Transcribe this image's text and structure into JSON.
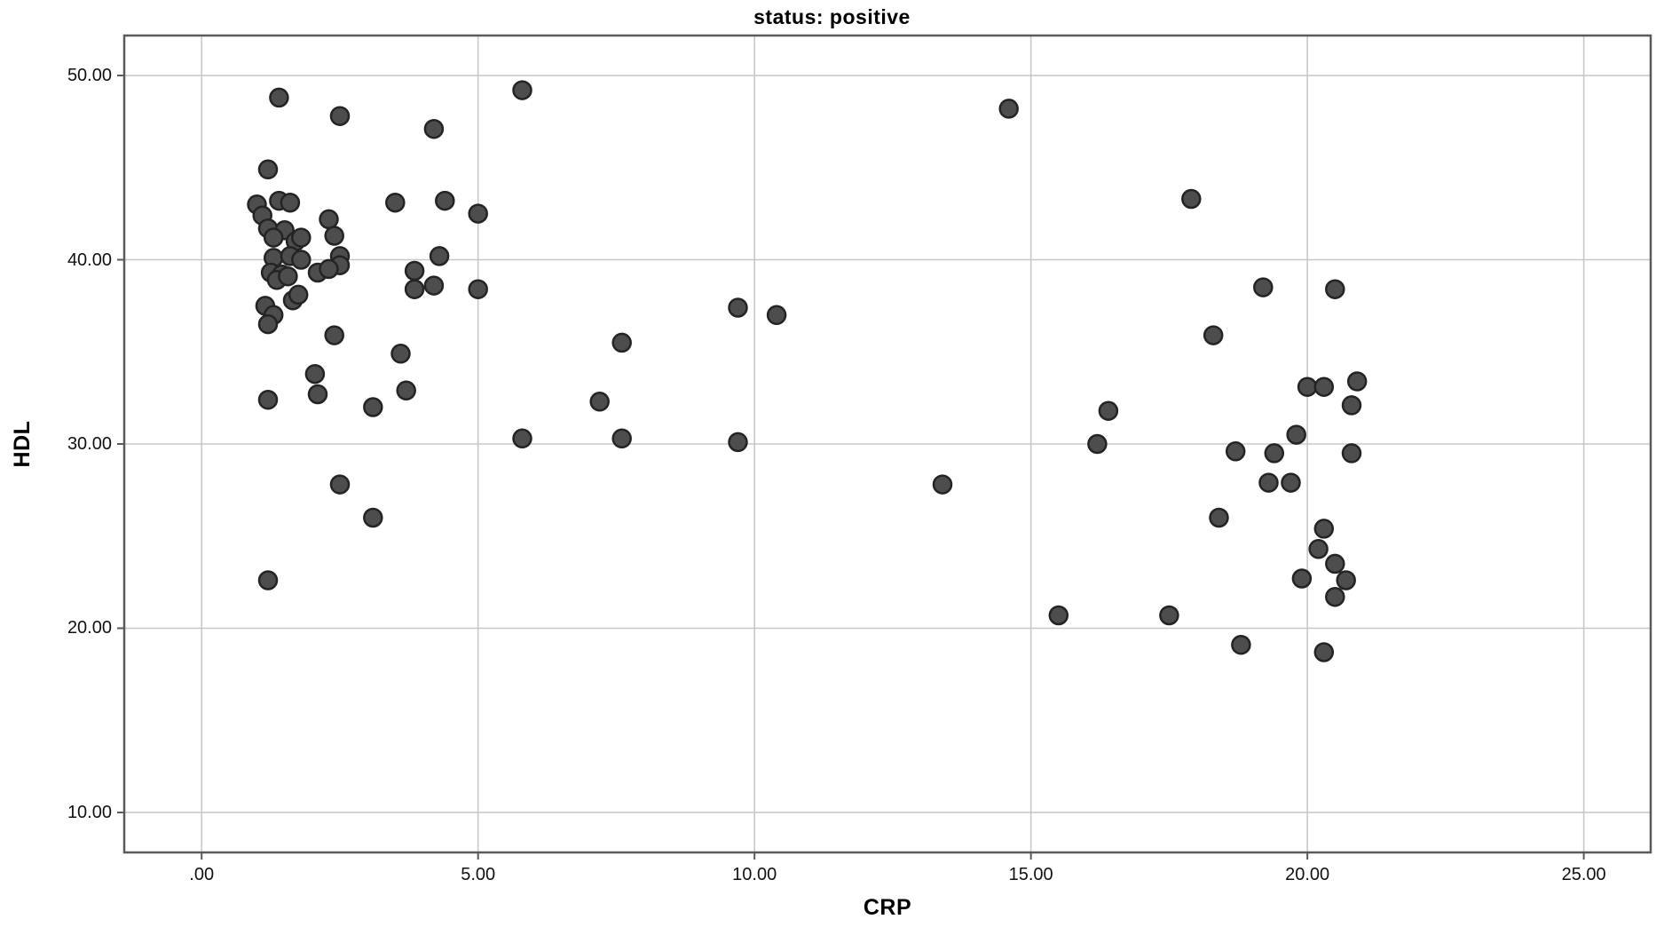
{
  "figure": {
    "title": "status: positive",
    "background": "#ffffff"
  },
  "chart_data": {
    "type": "scatter",
    "title": "status: positive",
    "xlabel": "CRP",
    "ylabel": "HDL",
    "xlim": [
      -1.4,
      26.21
    ],
    "ylim": [
      7.83,
      52.17
    ],
    "grid": true,
    "legend": "none",
    "x_ticks": [
      {
        "value": 0,
        "label": ".00"
      },
      {
        "value": 5,
        "label": "5.00"
      },
      {
        "value": 10,
        "label": "10.00"
      },
      {
        "value": 15,
        "label": "15.00"
      },
      {
        "value": 20,
        "label": "20.00"
      },
      {
        "value": 25,
        "label": "25.00"
      }
    ],
    "y_ticks": [
      {
        "value": 10,
        "label": "10.00"
      },
      {
        "value": 20,
        "label": "20.00"
      },
      {
        "value": 30,
        "label": "30.00"
      },
      {
        "value": 40,
        "label": "40.00"
      },
      {
        "value": 50,
        "label": "50.00"
      }
    ],
    "colors": {
      "marker_fill": "#4d4d4d",
      "marker_stroke": "#242424",
      "gridline": "#c8c8c8",
      "frame": "#5a5a5a",
      "background": "#ffffff",
      "text": "#000000"
    },
    "marker_radius": 10,
    "points": [
      [
        1.4,
        48.8
      ],
      [
        2.5,
        47.8
      ],
      [
        4.2,
        47.1
      ],
      [
        5.8,
        49.2
      ],
      [
        1.2,
        44.9
      ],
      [
        1.0,
        43.0
      ],
      [
        1.4,
        43.2
      ],
      [
        1.6,
        43.1
      ],
      [
        3.5,
        43.1
      ],
      [
        4.4,
        43.2
      ],
      [
        1.1,
        42.4
      ],
      [
        2.3,
        42.2
      ],
      [
        5.0,
        42.5
      ],
      [
        1.2,
        41.7
      ],
      [
        1.5,
        41.6
      ],
      [
        1.3,
        41.2
      ],
      [
        1.7,
        41.0
      ],
      [
        1.8,
        41.2
      ],
      [
        2.4,
        41.3
      ],
      [
        1.3,
        40.1
      ],
      [
        1.6,
        40.2
      ],
      [
        1.8,
        40.0
      ],
      [
        2.5,
        40.2
      ],
      [
        4.3,
        40.2
      ],
      [
        2.5,
        39.7
      ],
      [
        2.1,
        39.3
      ],
      [
        2.3,
        39.5
      ],
      [
        1.25,
        39.3
      ],
      [
        1.45,
        39.2
      ],
      [
        1.36,
        38.9
      ],
      [
        1.56,
        39.1
      ],
      [
        3.85,
        39.4
      ],
      [
        3.85,
        38.4
      ],
      [
        4.2,
        38.6
      ],
      [
        5.0,
        38.4
      ],
      [
        1.15,
        37.5
      ],
      [
        1.65,
        37.8
      ],
      [
        1.75,
        38.1
      ],
      [
        1.3,
        37.0
      ],
      [
        1.2,
        36.5
      ],
      [
        2.4,
        35.9
      ],
      [
        3.6,
        34.9
      ],
      [
        2.05,
        33.8
      ],
      [
        2.1,
        32.7
      ],
      [
        1.2,
        32.4
      ],
      [
        3.1,
        32.0
      ],
      [
        3.7,
        32.9
      ],
      [
        2.5,
        27.8
      ],
      [
        3.1,
        26.0
      ],
      [
        1.2,
        22.6
      ],
      [
        5.8,
        30.3
      ],
      [
        7.2,
        32.3
      ],
      [
        7.6,
        35.5
      ],
      [
        7.6,
        30.3
      ],
      [
        9.7,
        37.4
      ],
      [
        10.4,
        37.0
      ],
      [
        9.7,
        30.1
      ],
      [
        13.4,
        27.8
      ],
      [
        14.6,
        48.2
      ],
      [
        17.9,
        43.3
      ],
      [
        19.2,
        38.5
      ],
      [
        20.5,
        38.4
      ],
      [
        18.3,
        35.9
      ],
      [
        16.4,
        31.8
      ],
      [
        16.2,
        30.0
      ],
      [
        20.0,
        33.1
      ],
      [
        20.3,
        33.1
      ],
      [
        20.9,
        33.4
      ],
      [
        20.8,
        32.1
      ],
      [
        19.8,
        30.5
      ],
      [
        19.4,
        29.5
      ],
      [
        20.8,
        29.5
      ],
      [
        18.7,
        29.6
      ],
      [
        19.3,
        27.9
      ],
      [
        19.7,
        27.9
      ],
      [
        18.4,
        26.0
      ],
      [
        20.3,
        25.4
      ],
      [
        20.2,
        24.3
      ],
      [
        20.5,
        23.5
      ],
      [
        19.9,
        22.7
      ],
      [
        20.7,
        22.6
      ],
      [
        20.5,
        21.7
      ],
      [
        15.5,
        20.7
      ],
      [
        17.5,
        20.7
      ],
      [
        18.8,
        19.1
      ],
      [
        20.3,
        18.7
      ]
    ]
  }
}
